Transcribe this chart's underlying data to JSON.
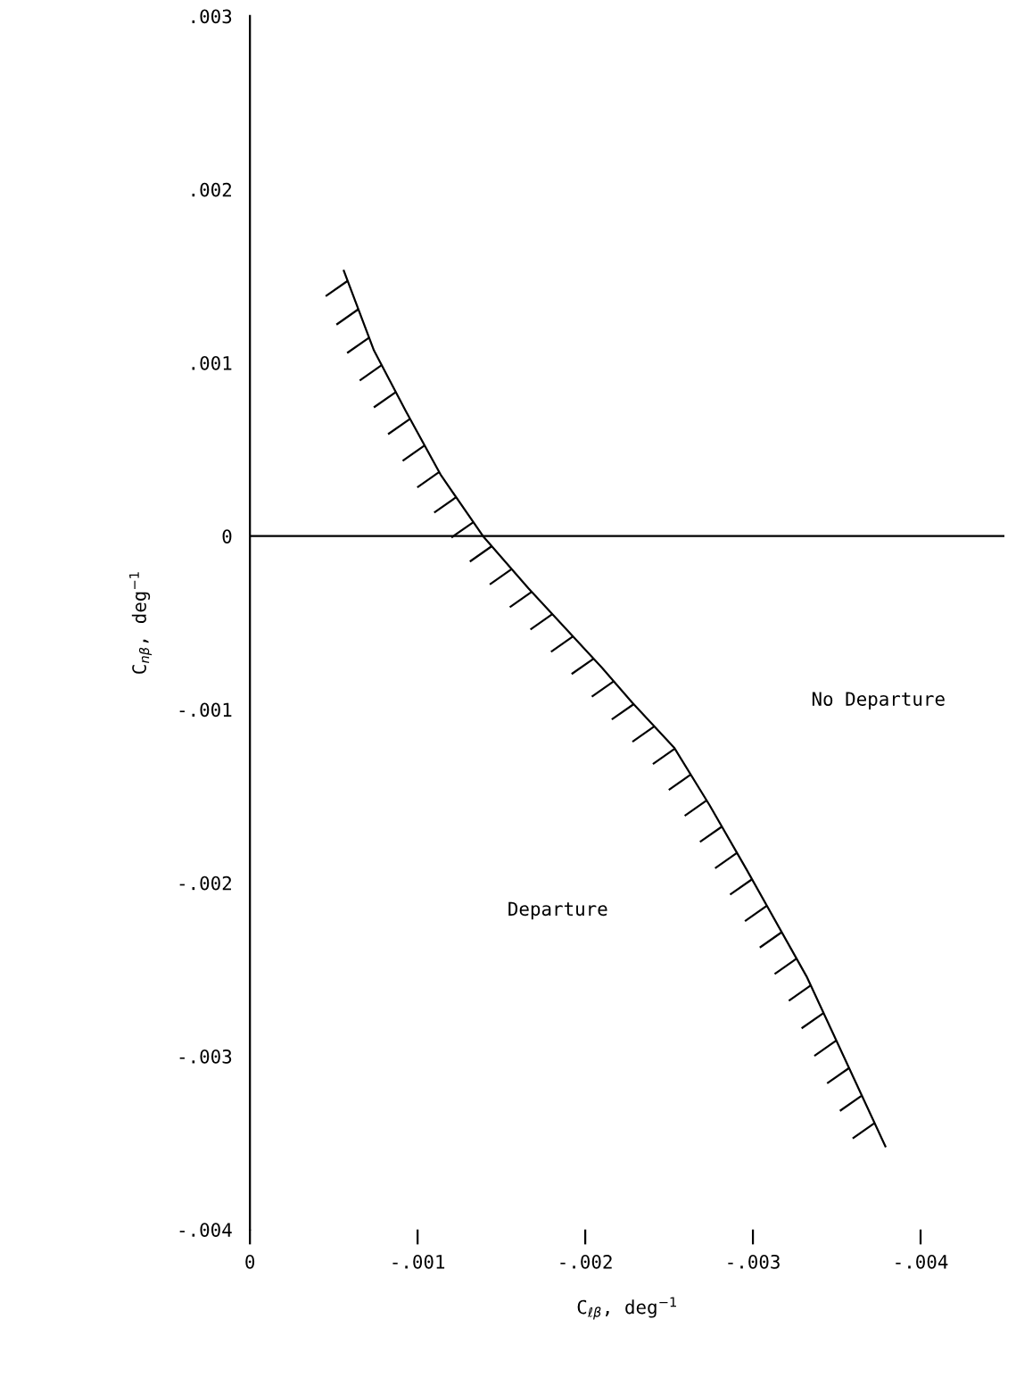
{
  "chart_data": {
    "type": "line",
    "xlabel": "C$_{ℓβ}$, deg$^{−1}$",
    "ylabel": "C$_{nβ}$, deg$^{−1}$",
    "series": [
      {
        "color": "#000000",
        "x": [
          -0.00056,
          -0.00074,
          -0.00093,
          -0.00114,
          -0.00139,
          -0.00166,
          -0.0021,
          -0.00228,
          -0.00253,
          -0.00274,
          -0.00296,
          -0.00332,
          -0.00379
        ],
        "values": [
          0.00153,
          0.00107,
          0.00072,
          0.00035,
          0.0,
          -0.0003,
          -0.00076,
          -0.00096,
          -0.00122,
          -0.00155,
          -0.00192,
          -0.00254,
          -0.00352
        ]
      }
    ],
    "xlim": [
      0,
      -0.0045
    ],
    "ylim": [
      -0.004,
      0.003
    ],
    "xticks": [
      0,
      {
        "value": -0.001,
        "label": "-.001"
      },
      {
        "value": -0.002,
        "label": "-.002"
      },
      {
        "value": -0.003,
        "label": "-.003"
      },
      {
        "value": -0.004,
        "label": "-.004"
      }
    ],
    "yticks": [
      {
        "value": -0.004,
        "label": "-.004"
      },
      {
        "value": -0.003,
        "label": "-.003"
      },
      {
        "value": -0.002,
        "label": "-.002"
      },
      {
        "value": -0.001,
        "label": "-.001"
      },
      0,
      {
        "value": 0.001,
        "label": ".001"
      },
      {
        "value": 0.002,
        "label": ".002"
      },
      {
        "value": 0.003,
        "label": ".003"
      }
    ],
    "ref_lines": [
      {
        "axis": "y",
        "value": 0,
        "color": "#000000"
      }
    ],
    "annotations": [
      "No Departure",
      "Departure"
    ],
    "grid": false,
    "legend": false,
    "marker": "none",
    "line_style": "solid"
  }
}
